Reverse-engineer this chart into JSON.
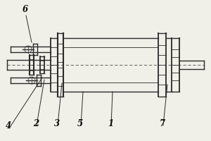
{
  "bg_color": "#f0efe8",
  "line_color": "#2a2a2a",
  "label_color": "#111111",
  "figsize": [
    3.0,
    2.0
  ],
  "dpi": 100,
  "label_fontsize": 8.5
}
